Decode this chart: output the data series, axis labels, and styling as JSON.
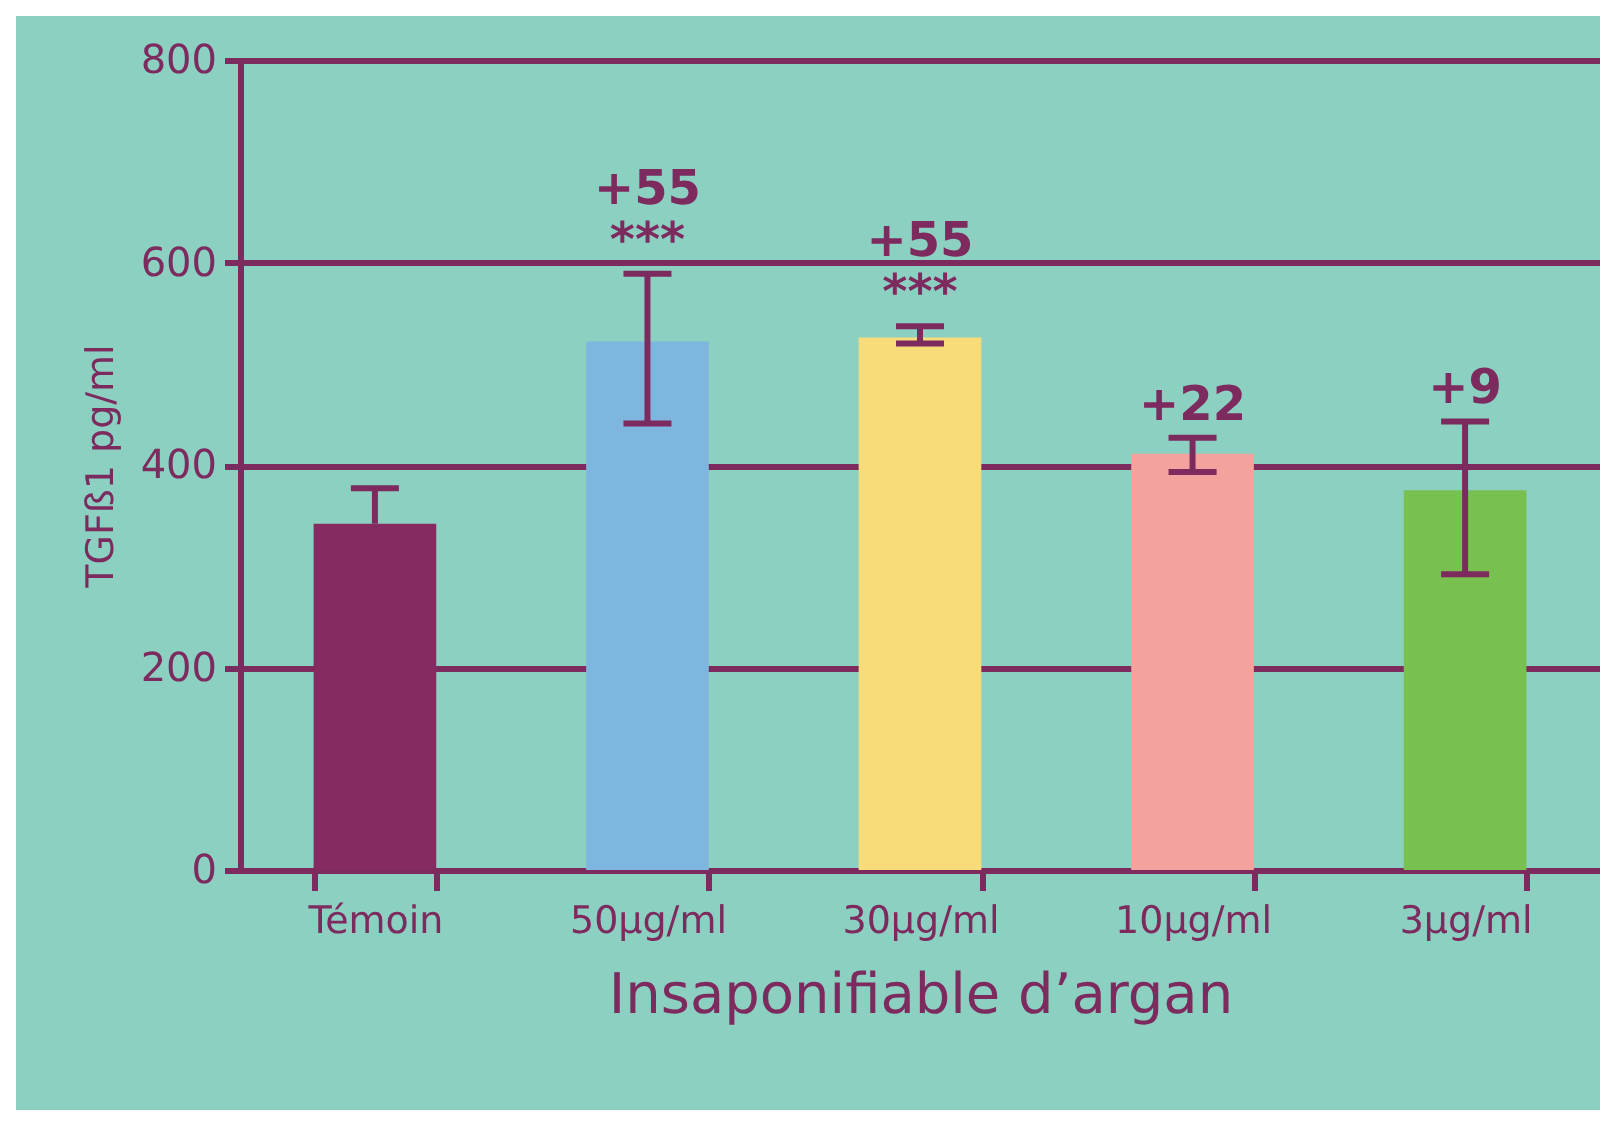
{
  "chart_data": {
    "type": "bar",
    "xlabel": "Insaponifiable d’argan",
    "ylabel": "TGFß1 pg/ml",
    "categories": [
      "Témoin",
      "50µg/ml",
      "30µg/ml",
      "10µg/ml",
      "3µg/ml"
    ],
    "values": [
      342,
      522,
      526,
      411,
      375
    ],
    "colors": [
      "#862b62",
      "#7fb6e0",
      "#f9dc7a",
      "#f4a29d",
      "#78c050"
    ],
    "errors": [
      [
        342,
        377
      ],
      [
        441,
        589
      ],
      [
        520,
        537
      ],
      [
        393,
        427
      ],
      [
        292,
        443
      ]
    ],
    "ylim": [
      0,
      800
    ],
    "yticks": [
      0,
      200,
      400,
      600,
      800
    ],
    "grid": "y",
    "annotations": [
      {
        "text": "***",
        "x": "50µg/ml",
        "y": 589
      },
      {
        "text": "+55",
        "x": "50µg/ml",
        "y": 589
      },
      {
        "text": "***",
        "x": "30µg/ml",
        "y": 537
      },
      {
        "text": "+55",
        "x": "30µg/ml",
        "y": 537
      },
      {
        "text": "+22",
        "x": "10µg/ml",
        "y": 427
      },
      {
        "text": "+9",
        "x": "3µg/ml",
        "y": 443
      }
    ]
  }
}
